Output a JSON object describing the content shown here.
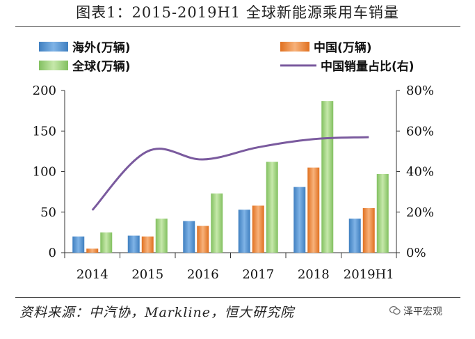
{
  "header": {
    "title": "图表1：2015-2019H1 全球新能源乘用车销量"
  },
  "source_note": "资料来源：中汽协，Markline，恒大研究院",
  "brand": {
    "name": "泽平宏观",
    "icon": "wechat-icon"
  },
  "colors": {
    "overseas": "#5b9bd5",
    "china": "#f28e38",
    "global": "#9bd27a",
    "share": "#7a5a9e"
  },
  "chart_data": {
    "type": "bar",
    "title": "2015-2019H1 全球新能源乘用车销量",
    "categories": [
      "2014",
      "2015",
      "2016",
      "2017",
      "2018",
      "2019H1"
    ],
    "series": [
      {
        "name": "海外(万辆)",
        "type": "bar",
        "axis": "left",
        "values": [
          20,
          21,
          39,
          53,
          81,
          42
        ]
      },
      {
        "name": "中国(万辆)",
        "type": "bar",
        "axis": "left",
        "values": [
          5,
          20,
          33,
          58,
          105,
          55
        ]
      },
      {
        "name": "全球(万辆)",
        "type": "bar",
        "axis": "left",
        "values": [
          25,
          42,
          73,
          112,
          187,
          97
        ]
      },
      {
        "name": "中国销量占比(右)",
        "type": "line",
        "axis": "right",
        "values": [
          0.21,
          0.5,
          0.46,
          0.52,
          0.56,
          0.57
        ]
      }
    ],
    "left_axis": {
      "ylim": [
        0,
        200
      ],
      "ticks": [
        "0",
        "50",
        "100",
        "150",
        "200"
      ]
    },
    "right_axis": {
      "ylim": [
        0,
        0.8
      ],
      "ticks": [
        "0%",
        "20%",
        "40%",
        "60%",
        "80%"
      ]
    },
    "legend": [
      {
        "label": "海外(万辆)",
        "kind": "bar"
      },
      {
        "label": "中国(万辆)",
        "kind": "bar"
      },
      {
        "label": "全球(万辆)",
        "kind": "bar"
      },
      {
        "label": "中国销量占比(右)",
        "kind": "line"
      }
    ],
    "legend_position": "top",
    "grid": false
  }
}
